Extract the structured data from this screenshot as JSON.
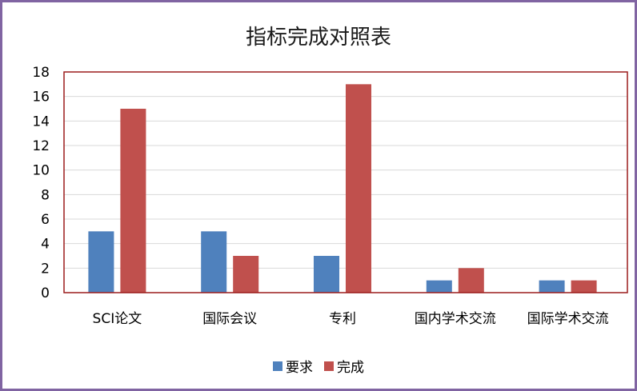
{
  "chart_data": {
    "type": "bar",
    "title": "指标完成对照表",
    "categories": [
      "SCI论文",
      "国际会议",
      "专利",
      "国内学术交流",
      "国际学术交流"
    ],
    "series": [
      {
        "name": "要求",
        "values": [
          5,
          5,
          3,
          1,
          1
        ],
        "color": "#4f81bd"
      },
      {
        "name": "完成",
        "values": [
          15,
          3,
          17,
          2,
          1
        ],
        "color": "#c0504d"
      }
    ],
    "ylim": [
      0,
      18
    ],
    "yticks": [
      "0",
      "2",
      "4",
      "6",
      "8",
      "10",
      "12",
      "14",
      "16",
      "18"
    ],
    "grid": true,
    "legend_position": "bottom",
    "plot_border_color": "#9b1c1c"
  }
}
